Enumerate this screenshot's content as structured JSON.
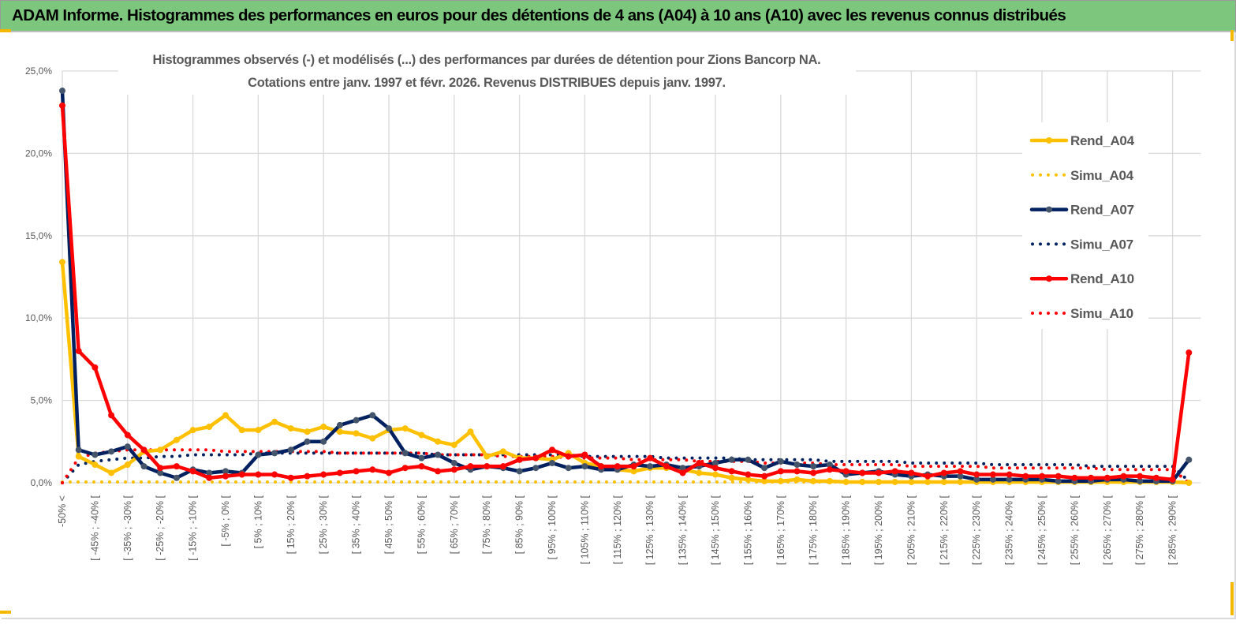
{
  "header": {
    "title": "ADAM Informe. Histogrammes des performances en euros pour des détentions de 4 ans (A04) à 10 ans (A10) avec les revenus connus distribués"
  },
  "chart_data": {
    "type": "line",
    "title_lines": [
      "Histogrammes observés (-) et modélisés (...) des performances par durées de détention pour Zions Bancorp NA.",
      "Cotations entre janv. 1997 et févr. 2026. Revenus DISTRIBUES depuis janv. 1997."
    ],
    "xlabel": "",
    "ylabel": "",
    "ylim": [
      0,
      25
    ],
    "y_ticks": [
      0,
      5,
      10,
      15,
      20,
      25
    ],
    "y_tick_labels": [
      "0,0%",
      "5,0%",
      "10,0%",
      "15,0%",
      "20,0%",
      "25,0%"
    ],
    "category_count": 70,
    "x_tick_every": 2,
    "x_tick_labels": [
      "-50% <",
      "[ -45% ; -40% [",
      "[ -35% ; -30% [",
      "[ -25% ; -20% [",
      "[ -15% ; -10% [",
      "[ -5% ; 0% [",
      "[ 5% ; 10% [",
      "[ 15% ; 20% [",
      "[ 25% ; 30% [",
      "[ 35% ; 40% [",
      "[ 45% ; 50% [",
      "[ 55% ; 60% [",
      "[ 65% ; 70% [",
      "[ 75% ; 80% [",
      "[ 85% ; 90% [",
      "[ 95% ; 100% [",
      "[ 105% ; 110% [",
      "[ 115% ; 120% [",
      "[ 125% ; 130% [",
      "[ 135% ; 140% [",
      "[ 145% ; 150% [",
      "[ 155% ; 160% [",
      "[ 165% ; 170% [",
      "[ 175% ; 180% [",
      "[ 185% ; 190% [",
      "[ 195% ; 200% [",
      "[ 205% ; 210% [",
      "[ 215% ; 220% [",
      "[ 225% ; 230% [",
      "[ 235% ; 240% [",
      "[ 245% ; 250% [",
      "[ 255% ; 260% [",
      "[ 265% ; 270% [",
      "[ 275% ; 280% [",
      "[ 285% ; 290% ["
    ],
    "grid": true,
    "legend_position": "right",
    "series": [
      {
        "name": "Rend_A04",
        "style": "solid",
        "color": "#ffc000",
        "values": [
          13.4,
          1.6,
          1.1,
          0.6,
          1.1,
          1.9,
          2.0,
          2.6,
          3.2,
          3.4,
          4.1,
          3.2,
          3.2,
          3.7,
          3.3,
          3.1,
          3.4,
          3.1,
          3.0,
          2.7,
          3.2,
          3.3,
          2.9,
          2.5,
          2.3,
          3.1,
          1.6,
          1.9,
          1.5,
          1.5,
          1.4,
          1.8,
          1.2,
          1.0,
          0.8,
          0.7,
          0.9,
          0.9,
          0.8,
          0.6,
          0.5,
          0.3,
          0.2,
          0.1,
          0.1,
          0.2,
          0.1,
          0.1,
          0.05,
          0.05,
          0.05,
          0.05,
          0.05,
          0.05,
          0.05,
          0.05,
          0.05,
          0.05,
          0.05,
          0.05,
          0.05,
          0.05,
          0.05,
          0.05,
          0.05,
          0.05,
          0.05,
          0.05,
          0.05,
          0.0
        ]
      },
      {
        "name": "Simu_A04",
        "style": "dotted",
        "color": "#ffc000",
        "values": [
          0.05,
          0.05,
          0.05,
          0.05,
          0.05,
          0.05,
          0.05,
          0.05,
          0.05,
          0.05,
          0.05,
          0.05,
          0.05,
          0.05,
          0.05,
          0.05,
          0.05,
          0.05,
          0.05,
          0.05,
          0.05,
          0.05,
          0.05,
          0.05,
          0.05,
          0.05,
          0.05,
          0.05,
          0.05,
          0.05,
          0.05,
          0.05,
          0.05,
          0.05,
          0.05,
          0.05,
          0.05,
          0.05,
          0.05,
          0.05,
          0.05,
          0.05,
          0.05,
          0.05,
          0.05,
          0.05,
          0.05,
          0.05,
          0.05,
          0.05,
          0.05,
          0.05,
          0.05,
          0.05,
          0.05,
          0.05,
          0.05,
          0.05,
          0.05,
          0.05,
          0.05,
          0.05,
          0.05,
          0.05,
          0.05,
          0.05,
          0.05,
          0.05,
          0.05,
          0.05
        ]
      },
      {
        "name": "Rend_A07",
        "style": "solid",
        "color": "#002060",
        "values": [
          23.8,
          2.0,
          1.7,
          1.9,
          2.2,
          1.0,
          0.6,
          0.3,
          0.8,
          0.6,
          0.7,
          0.6,
          1.7,
          1.8,
          2.0,
          2.5,
          2.5,
          3.5,
          3.8,
          4.1,
          3.3,
          1.8,
          1.5,
          1.7,
          1.2,
          0.8,
          1.0,
          0.9,
          0.7,
          0.9,
          1.2,
          0.9,
          1.0,
          0.8,
          0.8,
          1.1,
          1.0,
          1.1,
          0.9,
          1.0,
          1.2,
          1.4,
          1.4,
          0.9,
          1.3,
          1.1,
          1.0,
          1.1,
          0.5,
          0.6,
          0.7,
          0.5,
          0.4,
          0.5,
          0.4,
          0.4,
          0.2,
          0.2,
          0.2,
          0.2,
          0.2,
          0.1,
          0.1,
          0.1,
          0.2,
          0.2,
          0.1,
          0.1,
          0.1,
          1.4
        ]
      },
      {
        "name": "Simu_A07",
        "style": "dotted",
        "color": "#002060",
        "values": [
          0,
          1.1,
          1.3,
          1.4,
          1.5,
          1.5,
          1.6,
          1.6,
          1.7,
          1.7,
          1.7,
          1.7,
          1.8,
          1.8,
          1.8,
          1.8,
          1.8,
          1.8,
          1.8,
          1.8,
          1.8,
          1.8,
          1.8,
          1.7,
          1.7,
          1.7,
          1.7,
          1.7,
          1.7,
          1.7,
          1.7,
          1.7,
          1.6,
          1.6,
          1.6,
          1.6,
          1.6,
          1.5,
          1.5,
          1.5,
          1.5,
          1.5,
          1.4,
          1.4,
          1.4,
          1.4,
          1.4,
          1.3,
          1.3,
          1.3,
          1.3,
          1.3,
          1.2,
          1.2,
          1.2,
          1.2,
          1.2,
          1.1,
          1.1,
          1.1,
          1.1,
          1.1,
          1.1,
          1.0,
          1.0,
          1.0,
          1.0,
          1.0,
          1.0,
          0.1
        ]
      },
      {
        "name": "Rend_A10",
        "style": "solid",
        "color": "#ff0000",
        "values": [
          22.9,
          8.0,
          7.0,
          4.1,
          2.9,
          2.0,
          0.9,
          1.0,
          0.7,
          0.3,
          0.4,
          0.5,
          0.5,
          0.5,
          0.3,
          0.4,
          0.5,
          0.6,
          0.7,
          0.8,
          0.6,
          0.9,
          1.0,
          0.7,
          0.8,
          1.0,
          1.0,
          1.0,
          1.4,
          1.5,
          2.0,
          1.6,
          1.7,
          1.0,
          1.0,
          1.0,
          1.5,
          1.0,
          0.6,
          1.2,
          0.9,
          0.7,
          0.5,
          0.4,
          0.7,
          0.7,
          0.6,
          0.8,
          0.7,
          0.6,
          0.6,
          0.7,
          0.6,
          0.4,
          0.6,
          0.7,
          0.5,
          0.5,
          0.5,
          0.4,
          0.4,
          0.4,
          0.3,
          0.3,
          0.3,
          0.4,
          0.4,
          0.3,
          0.2,
          7.9
        ]
      },
      {
        "name": "Simu_A10",
        "style": "dotted",
        "color": "#ff0000",
        "values": [
          0,
          1.5,
          1.8,
          1.9,
          2.0,
          2.0,
          2.0,
          2.0,
          2.0,
          2.0,
          1.9,
          1.9,
          1.9,
          1.9,
          1.9,
          1.9,
          1.9,
          1.8,
          1.8,
          1.8,
          1.8,
          1.8,
          1.8,
          1.7,
          1.7,
          1.7,
          1.7,
          1.6,
          1.6,
          1.6,
          1.6,
          1.5,
          1.5,
          1.5,
          1.5,
          1.4,
          1.4,
          1.4,
          1.4,
          1.3,
          1.3,
          1.3,
          1.3,
          1.2,
          1.2,
          1.2,
          1.2,
          1.1,
          1.1,
          1.1,
          1.1,
          1.1,
          1.0,
          1.0,
          1.0,
          1.0,
          1.0,
          0.9,
          0.9,
          0.9,
          0.9,
          0.9,
          0.9,
          0.9,
          0.8,
          0.8,
          0.8,
          0.8,
          0.8,
          0.0
        ]
      }
    ]
  }
}
